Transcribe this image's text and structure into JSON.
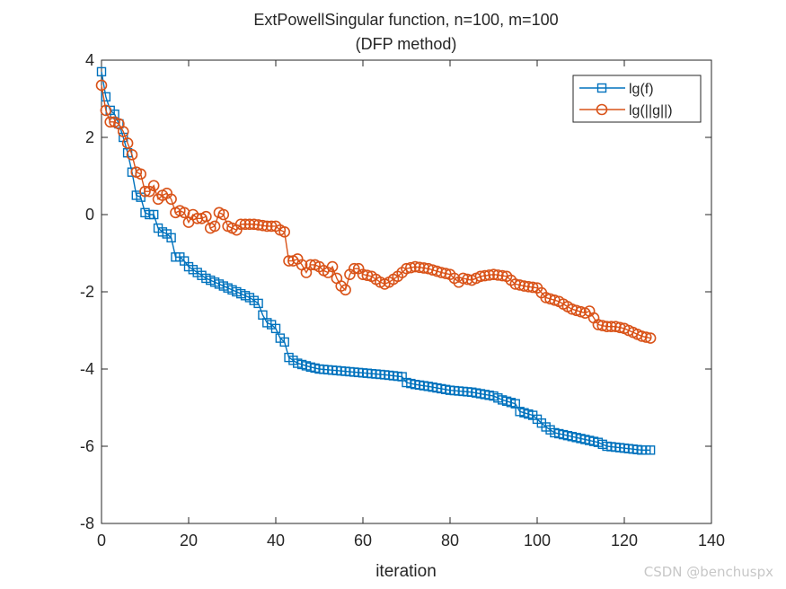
{
  "chart_data": {
    "type": "line",
    "title": "ExtPowellSingular function, n=100, m=100",
    "subtitle": "(DFP method)",
    "xlabel": "iteration",
    "ylabel": "",
    "xlim": [
      0,
      140
    ],
    "ylim": [
      -8,
      4
    ],
    "xticks": [
      0,
      20,
      40,
      60,
      80,
      100,
      120,
      140
    ],
    "yticks": [
      -8,
      -6,
      -4,
      -2,
      0,
      2,
      4
    ],
    "grid": false,
    "legend_position": "top-right",
    "series": [
      {
        "name": "lg(f)",
        "color": "#0072BD",
        "marker": "square",
        "knots": [
          [
            0,
            3.7
          ],
          [
            1,
            3.05
          ],
          [
            2,
            2.7
          ],
          [
            3,
            2.6
          ],
          [
            4,
            2.35
          ],
          [
            5,
            2.0
          ],
          [
            6,
            1.6
          ],
          [
            7,
            1.1
          ],
          [
            8,
            0.5
          ],
          [
            9,
            0.45
          ],
          [
            10,
            0.05
          ],
          [
            11,
            0.0
          ],
          [
            12,
            0.0
          ],
          [
            13,
            -0.35
          ],
          [
            14,
            -0.45
          ],
          [
            15,
            -0.5
          ],
          [
            16,
            -0.6
          ],
          [
            17,
            -1.1
          ],
          [
            18,
            -1.1
          ],
          [
            19,
            -1.2
          ],
          [
            20,
            -1.35
          ],
          [
            22,
            -1.5
          ],
          [
            24,
            -1.65
          ],
          [
            26,
            -1.75
          ],
          [
            28,
            -1.85
          ],
          [
            30,
            -1.95
          ],
          [
            32,
            -2.05
          ],
          [
            34,
            -2.15
          ],
          [
            36,
            -2.3
          ],
          [
            37,
            -2.6
          ],
          [
            38,
            -2.8
          ],
          [
            39,
            -2.85
          ],
          [
            40,
            -2.95
          ],
          [
            41,
            -3.2
          ],
          [
            42,
            -3.3
          ],
          [
            43,
            -3.7
          ],
          [
            45,
            -3.85
          ],
          [
            48,
            -3.95
          ],
          [
            50,
            -4.0
          ],
          [
            55,
            -4.05
          ],
          [
            60,
            -4.1
          ],
          [
            65,
            -4.15
          ],
          [
            69,
            -4.2
          ],
          [
            70,
            -4.35
          ],
          [
            72,
            -4.4
          ],
          [
            75,
            -4.45
          ],
          [
            80,
            -4.55
          ],
          [
            85,
            -4.6
          ],
          [
            90,
            -4.7
          ],
          [
            92,
            -4.8
          ],
          [
            95,
            -4.9
          ],
          [
            96,
            -5.1
          ],
          [
            99,
            -5.2
          ],
          [
            100,
            -5.3
          ],
          [
            102,
            -5.5
          ],
          [
            104,
            -5.65
          ],
          [
            106,
            -5.7
          ],
          [
            108,
            -5.75
          ],
          [
            110,
            -5.8
          ],
          [
            114,
            -5.9
          ],
          [
            116,
            -6.0
          ],
          [
            120,
            -6.05
          ],
          [
            124,
            -6.1
          ],
          [
            126,
            -6.1
          ]
        ]
      },
      {
        "name": "lg(||g||)",
        "color": "#D95319",
        "marker": "circle",
        "knots": [
          [
            0,
            3.35
          ],
          [
            1,
            2.7
          ],
          [
            2,
            2.4
          ],
          [
            3,
            2.4
          ],
          [
            4,
            2.35
          ],
          [
            5,
            2.15
          ],
          [
            6,
            1.85
          ],
          [
            7,
            1.55
          ],
          [
            8,
            1.1
          ],
          [
            9,
            1.05
          ],
          [
            10,
            0.6
          ],
          [
            11,
            0.6
          ],
          [
            12,
            0.75
          ],
          [
            13,
            0.4
          ],
          [
            14,
            0.5
          ],
          [
            15,
            0.55
          ],
          [
            16,
            0.4
          ],
          [
            17,
            0.05
          ],
          [
            18,
            0.1
          ],
          [
            19,
            0.05
          ],
          [
            20,
            -0.2
          ],
          [
            21,
            0.0
          ],
          [
            22,
            -0.1
          ],
          [
            23,
            -0.1
          ],
          [
            24,
            -0.05
          ],
          [
            25,
            -0.35
          ],
          [
            26,
            -0.3
          ],
          [
            27,
            0.05
          ],
          [
            28,
            0.0
          ],
          [
            29,
            -0.3
          ],
          [
            30,
            -0.35
          ],
          [
            31,
            -0.4
          ],
          [
            32,
            -0.25
          ],
          [
            33,
            -0.25
          ],
          [
            35,
            -0.25
          ],
          [
            38,
            -0.3
          ],
          [
            40,
            -0.3
          ],
          [
            41,
            -0.4
          ],
          [
            42,
            -0.45
          ],
          [
            43,
            -1.2
          ],
          [
            44,
            -1.2
          ],
          [
            45,
            -1.15
          ],
          [
            46,
            -1.3
          ],
          [
            47,
            -1.5
          ],
          [
            48,
            -1.3
          ],
          [
            49,
            -1.3
          ],
          [
            50,
            -1.35
          ],
          [
            51,
            -1.45
          ],
          [
            52,
            -1.5
          ],
          [
            53,
            -1.35
          ],
          [
            54,
            -1.65
          ],
          [
            55,
            -1.85
          ],
          [
            56,
            -1.95
          ],
          [
            57,
            -1.55
          ],
          [
            58,
            -1.4
          ],
          [
            59,
            -1.4
          ],
          [
            60,
            -1.55
          ],
          [
            62,
            -1.6
          ],
          [
            64,
            -1.75
          ],
          [
            65,
            -1.8
          ],
          [
            66,
            -1.75
          ],
          [
            68,
            -1.6
          ],
          [
            70,
            -1.4
          ],
          [
            72,
            -1.35
          ],
          [
            75,
            -1.4
          ],
          [
            78,
            -1.5
          ],
          [
            80,
            -1.55
          ],
          [
            82,
            -1.75
          ],
          [
            83,
            -1.65
          ],
          [
            85,
            -1.7
          ],
          [
            87,
            -1.6
          ],
          [
            90,
            -1.55
          ],
          [
            93,
            -1.6
          ],
          [
            95,
            -1.8
          ],
          [
            97,
            -1.85
          ],
          [
            100,
            -1.9
          ],
          [
            102,
            -2.15
          ],
          [
            105,
            -2.25
          ],
          [
            108,
            -2.45
          ],
          [
            111,
            -2.55
          ],
          [
            112,
            -2.5
          ],
          [
            114,
            -2.85
          ],
          [
            116,
            -2.9
          ],
          [
            118,
            -2.9
          ],
          [
            120,
            -2.95
          ],
          [
            122,
            -3.05
          ],
          [
            124,
            -3.15
          ],
          [
            126,
            -3.2
          ]
        ]
      }
    ]
  },
  "watermark": "CSDN @benchuspx"
}
